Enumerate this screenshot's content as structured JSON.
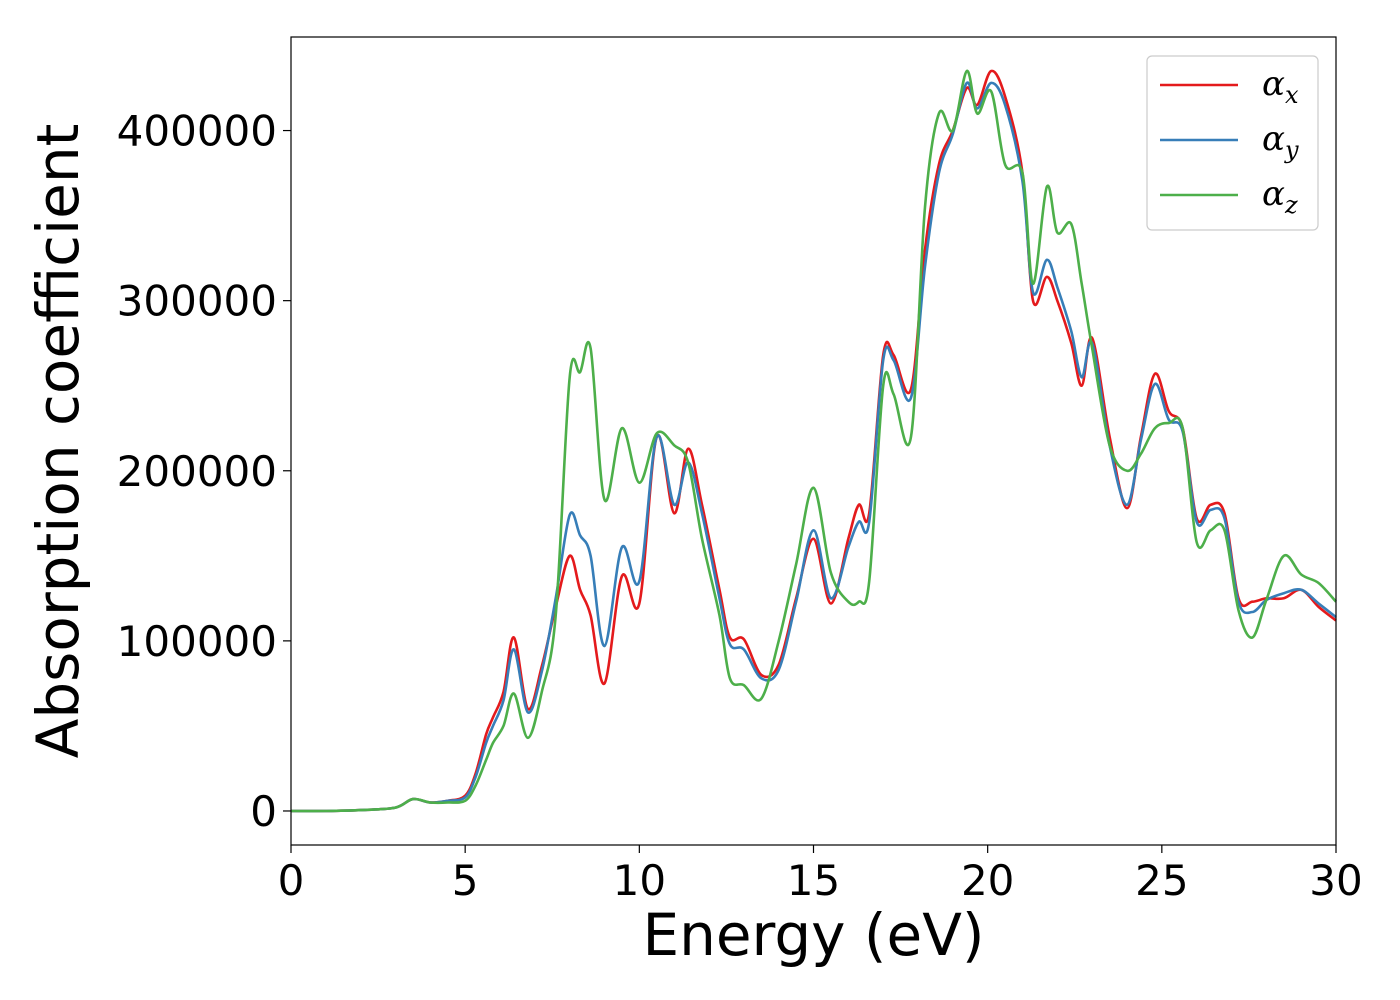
{
  "chart_data": {
    "type": "line",
    "xlabel": "Energy (eV)",
    "ylabel": "Absorption coefficient",
    "xlim": [
      0,
      30
    ],
    "ylim": [
      -20000,
      455000
    ],
    "xticks": [
      0,
      5,
      10,
      15,
      20,
      25,
      30
    ],
    "xtick_labels": [
      "0",
      "5",
      "10",
      "15",
      "20",
      "25",
      "30"
    ],
    "yticks": [
      0,
      100000,
      200000,
      300000,
      400000
    ],
    "ytick_labels": [
      "0",
      "100000",
      "200000",
      "300000",
      "400000"
    ],
    "grid": false,
    "legend_position": "top-right",
    "series": [
      {
        "name": "α",
        "subscript": "x",
        "color": "#e41a1c",
        "x": [
          0,
          1,
          2,
          3,
          3.5,
          4,
          4.5,
          5,
          5.3,
          5.6,
          5.8,
          6.1,
          6.4,
          6.8,
          7.2,
          7.6,
          8.0,
          8.3,
          8.6,
          9.0,
          9.5,
          10.0,
          10.5,
          11.0,
          11.4,
          11.8,
          12.3,
          12.6,
          13.0,
          13.5,
          14.0,
          14.5,
          15.0,
          15.5,
          16.0,
          16.3,
          16.6,
          17.0,
          17.3,
          17.8,
          18.2,
          18.6,
          19.0,
          19.4,
          19.7,
          20.1,
          20.5,
          21.0,
          21.3,
          21.7,
          22.0,
          22.4,
          22.7,
          23.0,
          23.5,
          24.0,
          24.4,
          24.8,
          25.2,
          25.6,
          26.0,
          26.4,
          26.8,
          27.2,
          27.6,
          28.0,
          28.5,
          29.0,
          29.5,
          30.0
        ],
        "y": [
          0,
          0,
          500,
          2000,
          7000,
          5000,
          6000,
          9000,
          22000,
          45000,
          55000,
          70000,
          102000,
          60000,
          85000,
          120000,
          150000,
          130000,
          115000,
          75000,
          138000,
          122000,
          220000,
          175000,
          213000,
          180000,
          130000,
          102000,
          101000,
          80000,
          86000,
          125000,
          160000,
          122000,
          160000,
          180000,
          175000,
          268000,
          268000,
          248000,
          330000,
          380000,
          400000,
          425000,
          415000,
          435000,
          420000,
          375000,
          300000,
          314000,
          300000,
          275000,
          250000,
          278000,
          220000,
          178000,
          220000,
          257000,
          235000,
          225000,
          172000,
          180000,
          175000,
          125000,
          123000,
          125000,
          125000,
          130000,
          120000,
          112000
        ]
      },
      {
        "name": "α",
        "subscript": "y",
        "color": "#377eb8",
        "x": [
          0,
          1,
          2,
          3,
          3.5,
          4,
          4.5,
          5,
          5.3,
          5.6,
          5.8,
          6.1,
          6.4,
          6.8,
          7.2,
          7.6,
          8.0,
          8.3,
          8.6,
          9.0,
          9.5,
          10.0,
          10.5,
          11.0,
          11.4,
          11.8,
          12.3,
          12.6,
          13.0,
          13.5,
          14.0,
          14.5,
          15.0,
          15.5,
          16.0,
          16.3,
          16.6,
          17.0,
          17.3,
          17.8,
          18.2,
          18.6,
          19.0,
          19.4,
          19.7,
          20.1,
          20.5,
          21.0,
          21.3,
          21.7,
          22.0,
          22.4,
          22.7,
          23.0,
          23.5,
          24.0,
          24.4,
          24.8,
          25.2,
          25.6,
          26.0,
          26.4,
          26.8,
          27.2,
          27.6,
          28.0,
          28.5,
          29.0,
          29.5,
          30.0
        ],
        "y": [
          0,
          0,
          500,
          2000,
          7000,
          5000,
          6000,
          8000,
          20000,
          40000,
          50000,
          65000,
          95000,
          58000,
          82000,
          125000,
          174000,
          162000,
          150000,
          97000,
          155000,
          135000,
          220000,
          180000,
          205000,
          175000,
          125000,
          98000,
          95000,
          78000,
          83000,
          123000,
          165000,
          125000,
          155000,
          170000,
          170000,
          265000,
          265000,
          243000,
          320000,
          375000,
          398000,
          428000,
          413000,
          428000,
          415000,
          370000,
          305000,
          324000,
          308000,
          282000,
          255000,
          275000,
          215000,
          180000,
          218000,
          251000,
          230000,
          223000,
          170000,
          177000,
          172000,
          123000,
          117000,
          124000,
          128000,
          130000,
          122000,
          114000
        ]
      },
      {
        "name": "α",
        "subscript": "z",
        "color": "#4daf4a",
        "x": [
          0,
          1,
          2,
          3,
          3.5,
          4,
          4.5,
          5,
          5.3,
          5.6,
          5.8,
          6.1,
          6.4,
          6.8,
          7.2,
          7.6,
          8.0,
          8.3,
          8.6,
          9.0,
          9.5,
          10.0,
          10.5,
          11.0,
          11.4,
          11.8,
          12.3,
          12.6,
          13.0,
          13.5,
          14.0,
          14.5,
          15.0,
          15.5,
          16.0,
          16.3,
          16.6,
          17.0,
          17.3,
          17.8,
          18.2,
          18.6,
          19.0,
          19.4,
          19.7,
          20.1,
          20.5,
          21.0,
          21.3,
          21.7,
          22.0,
          22.4,
          22.7,
          23.0,
          23.5,
          24.0,
          24.4,
          24.8,
          25.2,
          25.6,
          26.0,
          26.4,
          26.8,
          27.2,
          27.6,
          28.0,
          28.5,
          29.0,
          29.5,
          30.0
        ],
        "y": [
          0,
          0,
          500,
          2000,
          7000,
          5000,
          5000,
          6000,
          15000,
          30000,
          40000,
          50000,
          69000,
          43000,
          70000,
          115000,
          255000,
          258000,
          272000,
          183000,
          225000,
          193000,
          222000,
          215000,
          205000,
          160000,
          115000,
          78000,
          74000,
          66000,
          100000,
          145000,
          190000,
          140000,
          123000,
          123000,
          135000,
          250000,
          245000,
          220000,
          355000,
          410000,
          400000,
          435000,
          410000,
          423000,
          380000,
          375000,
          310000,
          367000,
          340000,
          345000,
          310000,
          272000,
          215000,
          200000,
          210000,
          225000,
          228000,
          225000,
          158000,
          165000,
          165000,
          118000,
          102000,
          124000,
          150000,
          139000,
          134000,
          123000
        ]
      }
    ]
  }
}
